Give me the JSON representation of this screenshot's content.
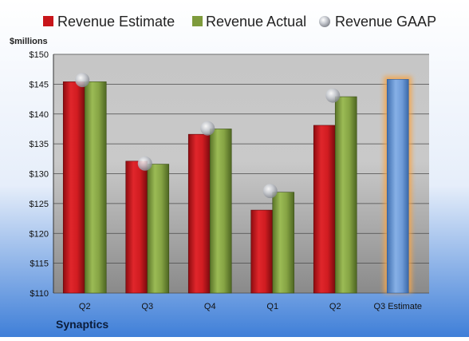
{
  "company": "Synaptics",
  "colors": {
    "estimate": "#c8151a",
    "actual": "#7e9b3c",
    "gaap": "#b9bcc2",
    "future_estimate": "#6b9ad4",
    "future_glow": "#f5a54a"
  },
  "chart_data": {
    "type": "bar",
    "ylabel": "$millions",
    "ylim": [
      110,
      150
    ],
    "yticks": [
      "$110",
      "$115",
      "$120",
      "$125",
      "$130",
      "$135",
      "$140",
      "$145",
      "$150"
    ],
    "ytick_values": [
      110,
      115,
      120,
      125,
      130,
      135,
      140,
      145,
      150
    ],
    "categories": [
      "Q2",
      "Q3",
      "Q4",
      "Q1",
      "Q2",
      "Q3 Estimate"
    ],
    "legend_position": "top",
    "grid": true,
    "series": [
      {
        "name": "Revenue Estimate",
        "kind": "bar",
        "values": [
          145.4,
          132.1,
          136.6,
          123.9,
          138.1,
          145.8
        ]
      },
      {
        "name": "Revenue Actual",
        "kind": "bar",
        "values": [
          145.4,
          131.6,
          137.5,
          126.9,
          142.9,
          null
        ]
      },
      {
        "name": "Revenue GAAP",
        "kind": "marker",
        "values": [
          145.7,
          131.7,
          137.6,
          127.1,
          143.1,
          null
        ]
      }
    ]
  }
}
